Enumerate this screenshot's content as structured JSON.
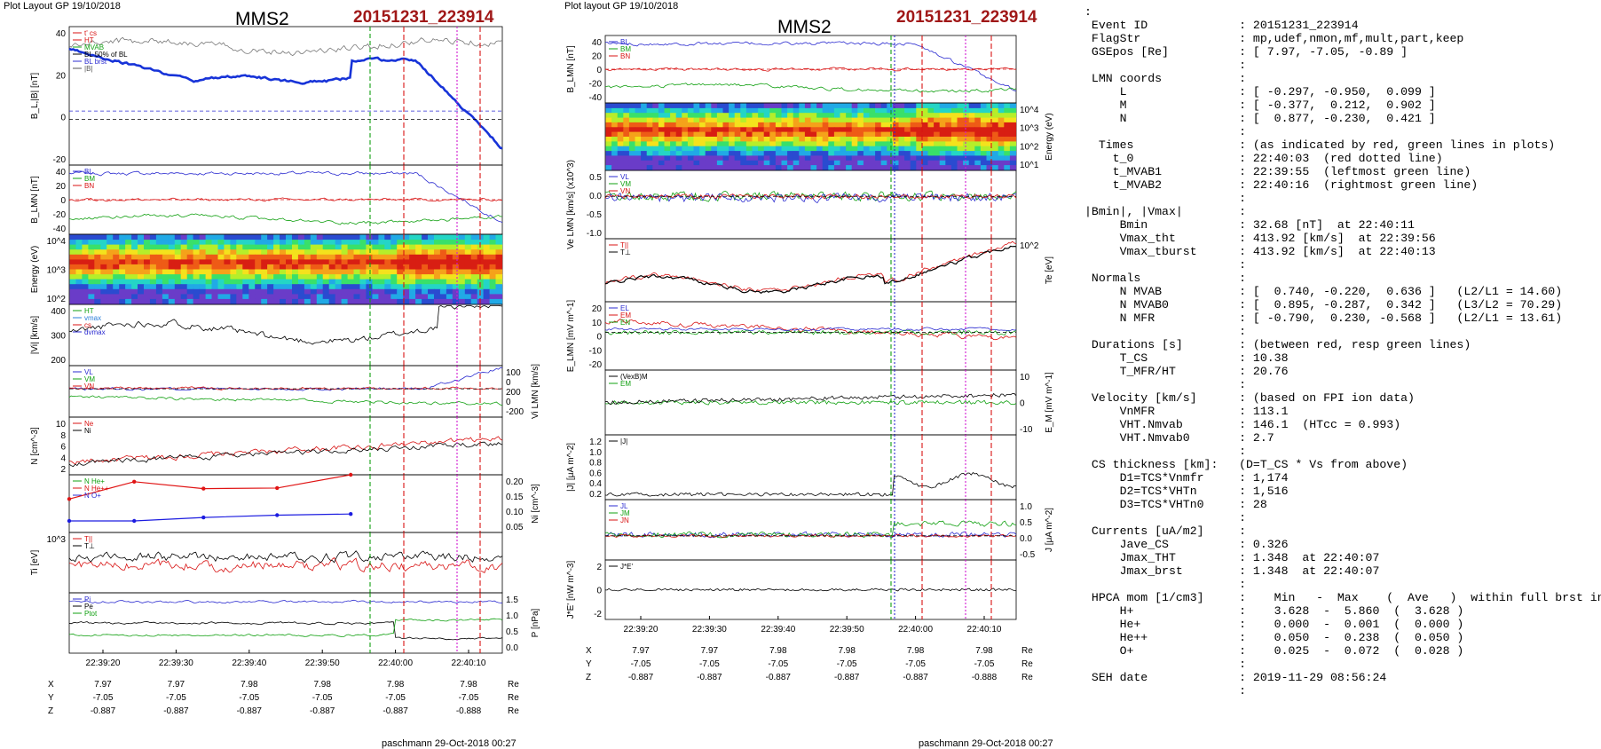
{
  "left": {
    "layout_label": "Plot Layout GP 19/10/2018",
    "spacecraft": "MMS2",
    "event_id": "20151231_223914",
    "footer": "paschmann 29-Oct-2018 00:27",
    "panels": [
      {
        "ylabel": "B_L,|B| [nT]",
        "ticks": [
          "40",
          "20",
          "0",
          "-20"
        ],
        "legend": [
          "t' cs",
          "HT",
          "MVAB",
          "BL 50% of BL",
          "BL brst",
          "|B|"
        ]
      },
      {
        "ylabel": "B_LMN [nT]",
        "ticks": [
          "40",
          "20",
          "0",
          "-20",
          "-40"
        ],
        "legend": [
          "BL",
          "BM",
          "BN"
        ]
      },
      {
        "ylabel": "Energy (eV)",
        "ticks": [
          "10^4",
          "10^3",
          "10^2"
        ],
        "legend": []
      },
      {
        "ylabel": "|Vi| [km/s]",
        "ticks": [
          "400",
          "300",
          "200"
        ],
        "legend": [
          "HT",
          "vmax",
          "cs",
          "dvmax"
        ]
      },
      {
        "ylabel": "Vi LMN [km/s]",
        "ticks": [
          "100",
          "0",
          "200",
          "0",
          "-200"
        ],
        "legend": [
          "VL",
          "VM",
          "VN"
        ]
      },
      {
        "ylabel": "N [cm^-3]",
        "ticks": [
          "10",
          "8",
          "6",
          "4",
          "2"
        ],
        "legend": [
          "Ne",
          "Ni"
        ]
      },
      {
        "ylabel": "Ni [cm^-3]",
        "ticks": [
          "0.20",
          "0.15",
          "0.10",
          "0.05"
        ],
        "legend": [
          "N He+",
          "N He++",
          "N O+"
        ]
      },
      {
        "ylabel": "Ti [eV]",
        "ticks": [
          "10^3"
        ],
        "legend": [
          "T||",
          "T⊥"
        ]
      },
      {
        "ylabel": "P [nPa]",
        "ticks": [
          "1.5",
          "1.0",
          "0.5",
          "0.0"
        ],
        "legend": [
          "Pi",
          "Pe",
          "Ptot"
        ]
      }
    ],
    "time_ticks": [
      "22:39:20",
      "22:39:30",
      "22:39:40",
      "22:39:50",
      "22:40:00",
      "22:40:10"
    ],
    "pos_rows": [
      {
        "name": "X",
        "vals": [
          "7.97",
          "7.97",
          "7.98",
          "7.98",
          "7.98",
          "7.98"
        ],
        "unit": "Re"
      },
      {
        "name": "Y",
        "vals": [
          "-7.05",
          "-7.05",
          "-7.05",
          "-7.05",
          "-7.05",
          "-7.05"
        ],
        "unit": "Re"
      },
      {
        "name": "Z",
        "vals": [
          "-0.887",
          "-0.887",
          "-0.887",
          "-0.887",
          "-0.887",
          "-0.888"
        ],
        "unit": "Re"
      }
    ]
  },
  "middle": {
    "layout_label": "Plot layout GP 19/10/2018",
    "spacecraft": "MMS2",
    "event_id": "20151231_223914",
    "footer": "paschmann 29-Oct-2018 00:27",
    "panels": [
      {
        "ylabel": "B_LMN [nT]",
        "ticks": [
          "40",
          "20",
          "0",
          "-20",
          "-40"
        ],
        "legend": [
          "BL",
          "BM",
          "BN"
        ]
      },
      {
        "ylabel": "Energy (eV)",
        "ticks": [
          "10^4",
          "10^3",
          "10^2",
          "10^1"
        ],
        "legend": []
      },
      {
        "ylabel": "Ve LMN [km/s] (x10^3)",
        "ticks": [
          "0.5",
          "0.0",
          "-0.5",
          "-1.0"
        ],
        "legend": [
          "VL",
          "VM",
          "VN"
        ]
      },
      {
        "ylabel": "Te [eV]",
        "ticks": [
          "10^2"
        ],
        "legend": [
          "T||",
          "T⊥"
        ]
      },
      {
        "ylabel": "E_LMN [mV m^-1]",
        "ticks": [
          "20",
          "10",
          "0",
          "-10",
          "-20"
        ],
        "legend": [
          "EL",
          "EM",
          "EN"
        ]
      },
      {
        "ylabel": "E_M [mV m^-1]",
        "ticks": [
          "10",
          "0",
          "-10"
        ],
        "legend": [
          "(VexB)M",
          "EM"
        ]
      },
      {
        "ylabel": "|J| [μA m^-2]",
        "ticks": [
          "1.2",
          "1.0",
          "0.8",
          "0.6",
          "0.4",
          "0.2"
        ],
        "legend": [
          "|J|"
        ]
      },
      {
        "ylabel": "J [μA m^-2]",
        "ticks": [
          "1.0",
          "0.5",
          "0.0",
          "-0.5"
        ],
        "legend": [
          "JL",
          "JM",
          "JN"
        ]
      },
      {
        "ylabel": "J*E' [nW m^-3]",
        "ticks": [
          "2",
          "0",
          "-2"
        ],
        "legend": [
          "J*E'"
        ]
      }
    ],
    "time_ticks": [
      "22:39:20",
      "22:39:30",
      "22:39:40",
      "22:39:50",
      "22:40:00",
      "22:40:10"
    ],
    "pos_rows": [
      {
        "name": "X",
        "vals": [
          "7.97",
          "7.97",
          "7.98",
          "7.98",
          "7.98",
          "7.98"
        ],
        "unit": "Re"
      },
      {
        "name": "Y",
        "vals": [
          "-7.05",
          "-7.05",
          "-7.05",
          "-7.05",
          "-7.05",
          "-7.05"
        ],
        "unit": "Re"
      },
      {
        "name": "Z",
        "vals": [
          "-0.887",
          "-0.887",
          "-0.887",
          "-0.887",
          "-0.887",
          "-0.888"
        ],
        "unit": "Re"
      }
    ]
  },
  "info_lines": [
    ":",
    " Event ID             : 20151231_223914",
    " FlagStr              : mp,udef,nmon,mf,mult,part,keep",
    " GSEpos [Re]          : [ 7.97, -7.05, -0.89 ]",
    "                      :",
    " LMN coords           :",
    "     L                : [ -0.297, -0.950,  0.099 ]",
    "     M                : [ -0.377,  0.212,  0.902 ]",
    "     N                : [  0.877, -0.230,  0.421 ]",
    "                      :",
    "  Times               : (as indicated by red, green lines in plots)",
    "    t_0               : 22:40:03  (red dotted line)",
    "    t_MVAB1           : 22:39:55  (leftmost green line)",
    "    t_MVAB2           : 22:40:16  (rightmost green line)",
    "                      :",
    "|Bmin|, |Vmax|        :",
    "     Bmin             : 32.68 [nT]  at 22:40:11",
    "     Vmax_tht         : 413.92 [km/s]  at 22:39:56",
    "     Vmax_tburst      : 413.92 [km/s]  at 22:40:13",
    "                      :",
    " Normals              :",
    "     N MVAB           : [  0.740, -0.220,  0.636 ]   (L2/L1 = 14.60)",
    "     N MVAB0          : [  0.895, -0.287,  0.342 ]   (L3/L2 = 70.29)",
    "     N MFR            : [ -0.790,  0.230, -0.568 ]   (L2/L1 = 13.61)",
    "                      :",
    " Durations [s]        : (between red, resp green lines)",
    "     T_CS             : 10.38",
    "     T_MFR/HT         : 20.76",
    "                      :",
    " Velocity [km/s]      : (based on FPI ion data)",
    "     VnMFR            : 113.1",
    "     VHT.Nmvab        : 146.1  (HTcc = 0.993)",
    "     VHT.Nmvab0       : 2.7",
    "                      :",
    " CS thickness [km]:   (D=T_CS * Vs from above)",
    "     D1=TCS*Vnmfr     : 1,174",
    "     D2=TCS*VHTn      : 1,516",
    "     D3=TCS*VHTn0     : 28",
    "                      :",
    " Currents [uA/m2]     :",
    "     Jave_CS          : 0.326",
    "     Jmax_THT         : 1.348  at 22:40:07",
    "     Jmax_brst        : 1.348  at 22:40:07",
    "                      :",
    " HPCA mom [1/cm3]     :    Min   -  Max    (  Ave   )  within full brst int",
    "     H+               :    3.628  -  5.860  (  3.628 )",
    "     He+              :    0.000  -  0.001  (  0.000 )",
    "     He++             :    0.050  -  0.238  (  0.050 )",
    "     O+               :    0.025  -  0.072  (  0.028 )",
    "                      :",
    " SEH date             : 2019-11-29 08:56:24",
    "                      :"
  ],
  "chart_data": [
    {
      "type": "line",
      "title": "MMS2 20151231_223914 (left stack)",
      "x": [
        "22:39:20",
        "22:39:30",
        "22:39:40",
        "22:39:50",
        "22:40:00",
        "22:40:10"
      ],
      "series": [
        {
          "name": "BL brst",
          "values": [
            38,
            26,
            27,
            36,
            5,
            -20
          ]
        },
        {
          "name": "|B|",
          "values": [
            44,
            40,
            41,
            42,
            36,
            33
          ]
        },
        {
          "name": "|Vi|",
          "values": [
            320,
            230,
            290,
            270,
            260,
            380
          ]
        },
        {
          "name": "Ne",
          "values": [
            3.5,
            4.5,
            5.5,
            4.2,
            6.5,
            8
          ]
        },
        {
          "name": "N He++",
          "values": [
            0.1,
            0.18,
            0.16,
            0.16,
            0.2,
            0.2
          ]
        },
        {
          "name": "N O+",
          "values": [
            0.03,
            0.03,
            0.04,
            0.05,
            0.05,
            0.05
          ]
        },
        {
          "name": "Pi",
          "values": [
            1.4,
            1.4,
            1.4,
            1.45,
            1.45,
            1.5
          ]
        },
        {
          "name": "Pe",
          "values": [
            0.8,
            0.8,
            0.85,
            0.8,
            0.4,
            0.3
          ]
        },
        {
          "name": "Ptot",
          "values": [
            0.3,
            0.3,
            0.35,
            0.3,
            0.8,
            1.0
          ]
        }
      ],
      "xlabel": "",
      "vlines": {
        "green": "22:39:55",
        "red_dotted": "22:40:03",
        "magenta": "22:40:07"
      }
    },
    {
      "type": "line",
      "title": "MMS2 20151231_223914 (middle stack)",
      "x": [
        "22:39:20",
        "22:39:30",
        "22:39:40",
        "22:39:50",
        "22:40:00",
        "22:40:10"
      ],
      "series": [
        {
          "name": "BL",
          "values": [
            38,
            30,
            28,
            35,
            15,
            -10
          ]
        },
        {
          "name": "BM",
          "values": [
            0,
            2,
            0,
            -2,
            0,
            0
          ]
        },
        {
          "name": "BN",
          "values": [
            -30,
            -25,
            -20,
            -28,
            -35,
            -30
          ]
        },
        {
          "name": "|J|",
          "values": [
            0.1,
            0.1,
            0.1,
            0.1,
            0.6,
            0.4
          ]
        },
        {
          "name": "J*E'",
          "values": [
            0,
            0,
            0,
            0,
            0.3,
            0
          ]
        }
      ],
      "xlabel": ""
    }
  ]
}
